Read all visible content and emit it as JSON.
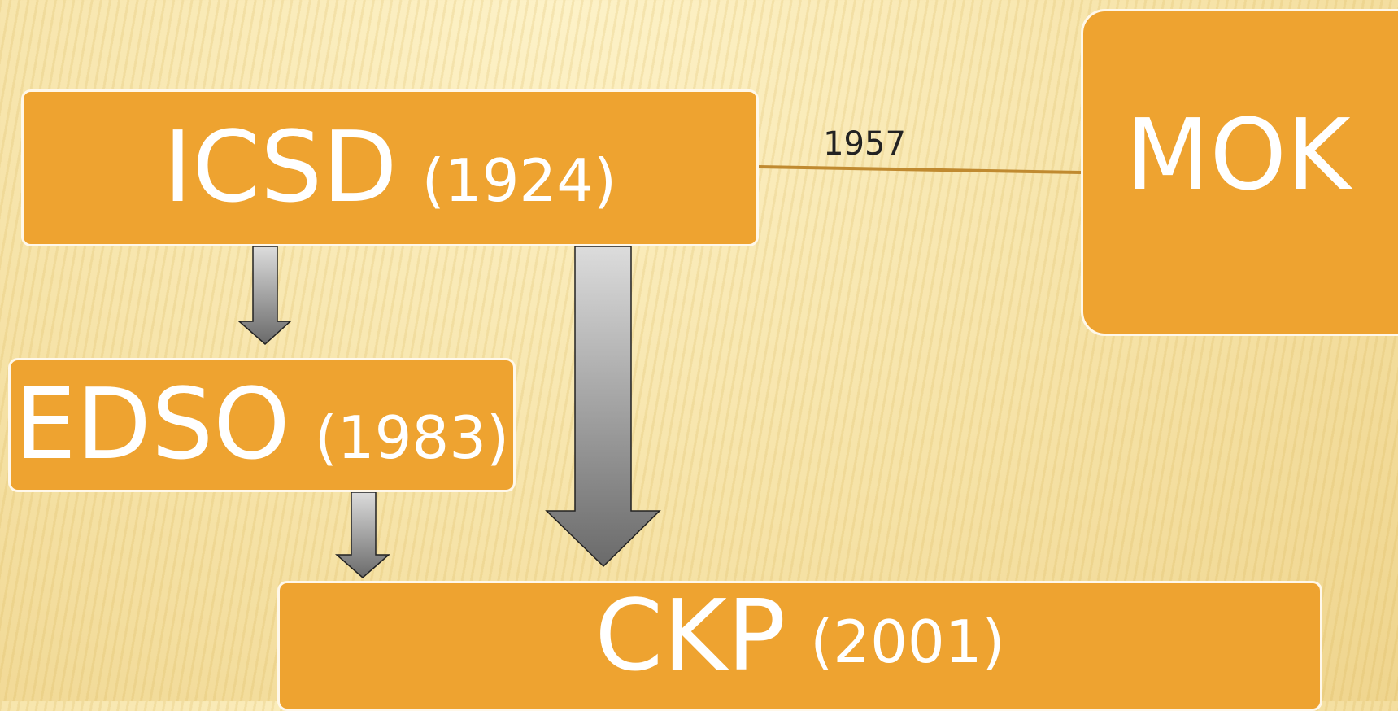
{
  "nodes": [
    {
      "label": "ICSD",
      "year": "(1924)"
    },
    {
      "label": "EDSO",
      "year": "(1983)"
    },
    {
      "label": "CKP",
      "year": "(2001)"
    },
    {
      "label": "MOK"
    }
  ],
  "edges": [
    {
      "label": "1957"
    }
  ]
}
